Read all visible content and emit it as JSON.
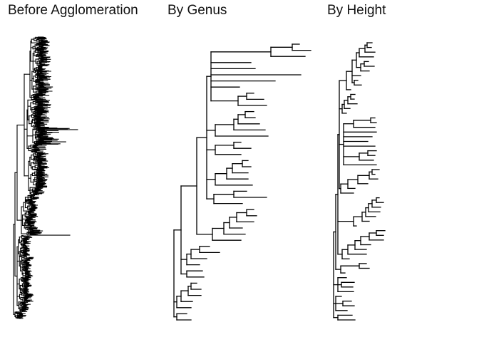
{
  "figure": {
    "panels": [
      {
        "title": "Before Agglomeration"
      },
      {
        "title": "By Genus"
      },
      {
        "title": "By Height"
      }
    ],
    "line_color": "#000000",
    "background": "#ffffff"
  }
}
